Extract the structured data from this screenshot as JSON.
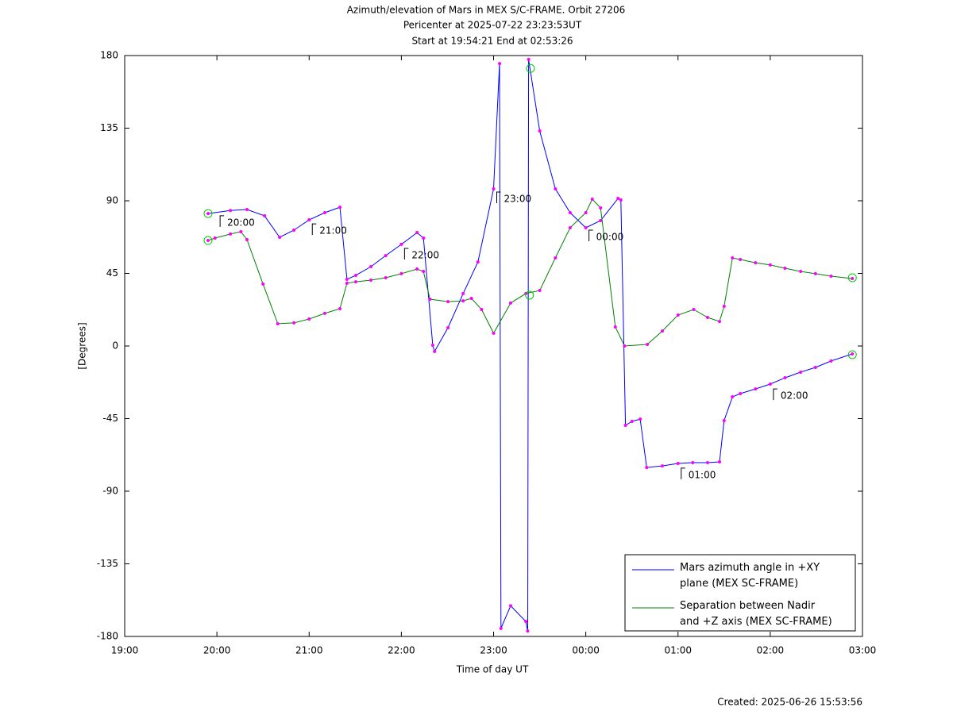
{
  "chart_data": {
    "type": "line",
    "title": "Azimuth/elevation of Mars in MEX S/C-FRAME.  Orbit 27206",
    "subtitle": [
      "Pericenter at 2025-07-22 23:23:53UT",
      "Start at 19:54:21 End at 02:53:26"
    ],
    "xlabel": "Time of day UT",
    "ylabel": "[Degrees]",
    "footer": "Created: 2025-06-26 15:53:56",
    "xlim": [
      19,
      27
    ],
    "xticks": [
      {
        "value": 19,
        "label": "19:00"
      },
      {
        "value": 20,
        "label": "20:00"
      },
      {
        "value": 21,
        "label": "21:00"
      },
      {
        "value": 22,
        "label": "22:00"
      },
      {
        "value": 23,
        "label": "23:00"
      },
      {
        "value": 24,
        "label": "00:00"
      },
      {
        "value": 25,
        "label": "01:00"
      },
      {
        "value": 26,
        "label": "02:00"
      },
      {
        "value": 27,
        "label": "03:00"
      }
    ],
    "ylim": [
      -180,
      180
    ],
    "yticks": [
      180,
      135,
      90,
      45,
      0,
      -45,
      -90,
      -135,
      -180
    ],
    "grid": false,
    "legend": "lower right",
    "marker_color": "#ff00ff",
    "series": [
      {
        "name": "Mars azimuth angle in +XY\nplane (MEX SC-FRAME)",
        "color": "#0000ff",
        "x": [
          19.904,
          20.146,
          20.326,
          20.516,
          20.68,
          20.835,
          21.0,
          21.17,
          21.334,
          21.41,
          21.506,
          21.67,
          21.83,
          22.0,
          22.17,
          22.24,
          22.34,
          22.36,
          22.506,
          22.67,
          22.83,
          23.0,
          23.065,
          23.08,
          23.185,
          23.35,
          23.37,
          23.38,
          23.5,
          23.67,
          23.83,
          24.0,
          24.16,
          24.35,
          24.38,
          24.43,
          24.5,
          24.59,
          24.66,
          24.83,
          25.0,
          25.16,
          25.32,
          25.45,
          25.5,
          25.59,
          25.675,
          25.84,
          26.0,
          26.16,
          26.33,
          26.49,
          26.66,
          26.89
        ],
        "values": [
          82.1,
          84,
          84.6,
          80.7,
          67.4,
          71.8,
          78.2,
          82.6,
          86,
          41.3,
          43.8,
          49.2,
          56,
          63,
          70.3,
          66.9,
          0.5,
          -3.4,
          11.3,
          32.5,
          52.1,
          97.4,
          175,
          -175,
          -161,
          -170.7,
          -176.6,
          177.6,
          133.3,
          97.4,
          82.6,
          73.3,
          77.7,
          91.5,
          90.5,
          -49.2,
          -46.7,
          -45.3,
          -75.3,
          -74.3,
          -72.8,
          -72.3,
          -72.3,
          -71.8,
          -46.2,
          -31.5,
          -29.5,
          -26.6,
          -23.6,
          -19.7,
          -16.2,
          -13.3,
          -9.3,
          -4.9
        ]
      },
      {
        "name": "Separation between Nadir\nand +Z axis (MEX SC-FRAME)",
        "color": "#008000",
        "x": [
          19.904,
          19.98,
          20.146,
          20.26,
          20.326,
          20.5,
          20.66,
          20.835,
          21.0,
          21.17,
          21.334,
          21.41,
          21.506,
          21.67,
          21.83,
          22.0,
          22.17,
          22.24,
          22.31,
          22.506,
          22.67,
          22.76,
          22.87,
          23.0,
          23.185,
          23.35,
          23.5,
          23.67,
          23.83,
          24.0,
          24.07,
          24.16,
          24.32,
          24.42,
          24.667,
          24.83,
          25.0,
          25.17,
          25.32,
          25.45,
          25.5,
          25.59,
          25.675,
          25.84,
          26.0,
          26.16,
          26.33,
          26.49,
          26.66,
          26.89
        ],
        "values": [
          65.4,
          66.9,
          69.4,
          70.8,
          65.9,
          38.4,
          13.8,
          14.3,
          16.7,
          20.2,
          23.1,
          38.9,
          39.8,
          40.8,
          42.3,
          44.8,
          47.7,
          46.2,
          29.0,
          27.5,
          28.0,
          29.5,
          22.6,
          7.9,
          26.6,
          32.5,
          34.4,
          54.6,
          73.3,
          82.6,
          91,
          85.6,
          11.8,
          0,
          1,
          9.3,
          19.2,
          22.6,
          17.7,
          15.2,
          24.6,
          54.6,
          53.6,
          51.6,
          50.2,
          48.2,
          46.2,
          44.8,
          43.3,
          41.8
        ]
      }
    ],
    "annotations": [
      {
        "text": "20:00",
        "x": 20.0,
        "y": 80.7
      },
      {
        "text": "21:00",
        "x": 21.0,
        "y": 75.7
      },
      {
        "text": "22:00",
        "x": 22.0,
        "y": 60.5
      },
      {
        "text": "23:00",
        "x": 23.0,
        "y": 95.4
      },
      {
        "text": "00:00",
        "x": 24.0,
        "y": 71.8
      },
      {
        "text": "01:00",
        "x": 25.0,
        "y": -75.7
      },
      {
        "text": "02:00",
        "x": 26.0,
        "y": -26.6
      }
    ],
    "highlight_points": {
      "color": "#00cc00",
      "x": [
        19.904,
        19.904,
        23.4,
        23.39,
        26.89,
        26.89
      ],
      "values": [
        82.1,
        65.4,
        172,
        31.5,
        42.3,
        -5.4
      ]
    }
  }
}
